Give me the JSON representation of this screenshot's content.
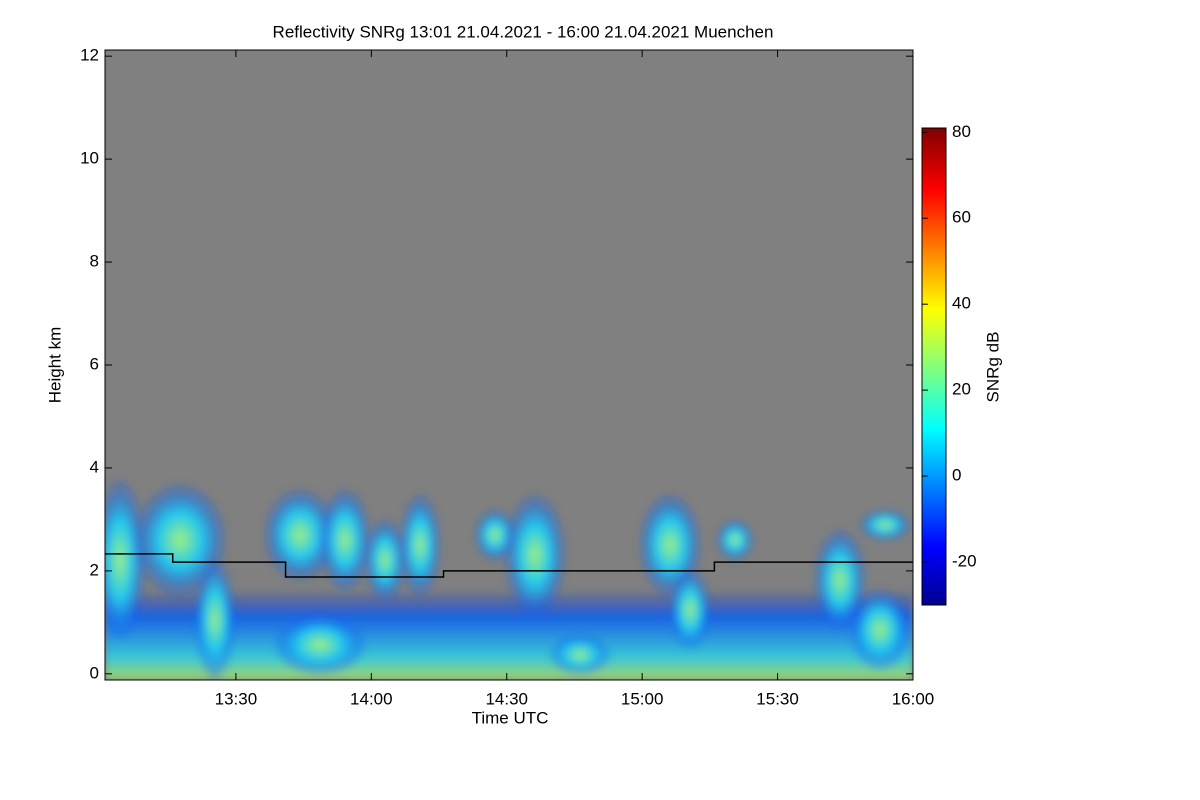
{
  "chart_data": {
    "type": "line",
    "title": "Reflectivity SNRg   13:01 21.04.2021 - 16:00 21.04.2021 Muenchen",
    "x_label": "Time UTC",
    "y_label": "Height km",
    "colorbar_label": "SNRg dB",
    "xlim": [
      781,
      960
    ],
    "xticks": [
      {
        "value": 810,
        "label": "13:30"
      },
      {
        "value": 840,
        "label": "14:00"
      },
      {
        "value": 870,
        "label": "14:30"
      },
      {
        "value": 900,
        "label": "15:00"
      },
      {
        "value": 930,
        "label": "15:30"
      },
      {
        "value": 960,
        "label": "16:00"
      }
    ],
    "ylim": [
      -0.12,
      12.12
    ],
    "yticks": [
      0,
      2,
      4,
      6,
      8,
      10,
      12
    ],
    "zlim": [
      -30,
      81
    ],
    "zticks": [
      -20,
      0,
      20,
      40,
      60,
      80
    ],
    "background": "#808080",
    "series": [
      {
        "color": "#000000",
        "x": [
          781,
          796,
          796,
          821,
          821,
          856,
          856,
          916,
          916,
          960
        ],
        "values": [
          2.33,
          2.33,
          2.17,
          2.17,
          1.88,
          1.88,
          2.0,
          2.0,
          2.17,
          2.17
        ]
      }
    ]
  }
}
